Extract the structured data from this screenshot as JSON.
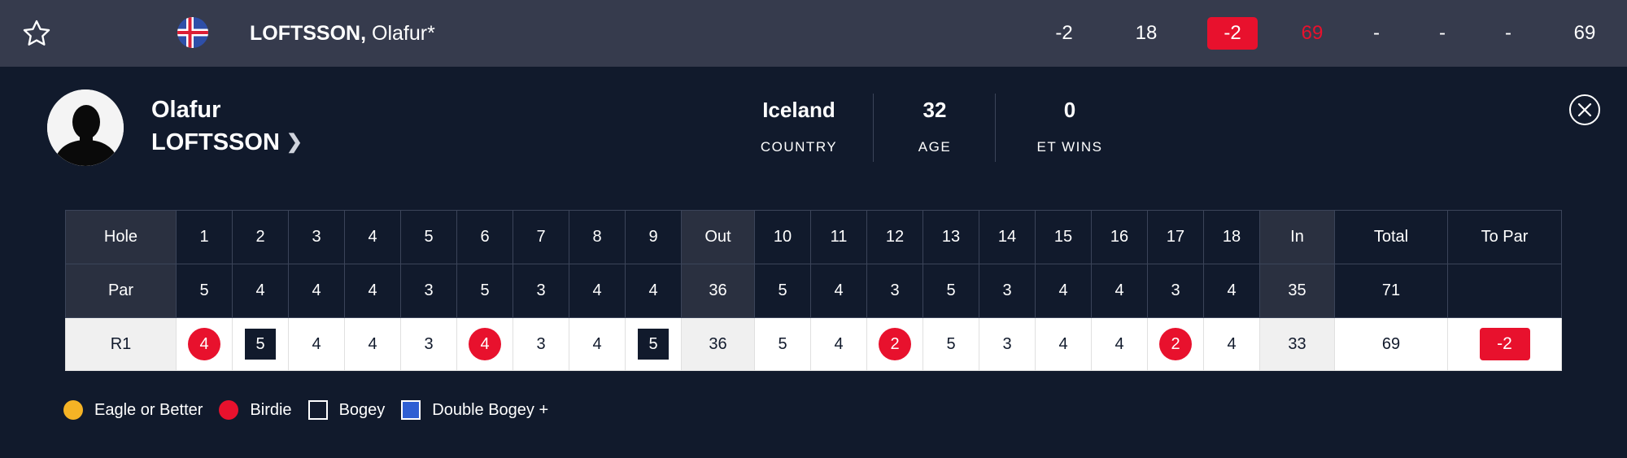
{
  "leaderboard_row": {
    "last_name": "LOFTSSON,",
    "first_name": "Olafur*",
    "flag_icon": "iceland-flag-icon",
    "stats": [
      "-2",
      "18",
      "-2",
      "69",
      "-",
      "-",
      "-",
      "69"
    ]
  },
  "profile": {
    "first_name": "Olafur",
    "last_name": "LOFTSSON",
    "country_value": "Iceland",
    "country_label": "COUNTRY",
    "age_value": "32",
    "age_label": "AGE",
    "wins_value": "0",
    "wins_label": "ET WINS"
  },
  "scorecard": {
    "header": [
      "Hole",
      "1",
      "2",
      "3",
      "4",
      "5",
      "6",
      "7",
      "8",
      "9",
      "Out",
      "10",
      "11",
      "12",
      "13",
      "14",
      "15",
      "16",
      "17",
      "18",
      "In",
      "Total",
      "To Par"
    ],
    "par": [
      "Par",
      "5",
      "4",
      "4",
      "4",
      "3",
      "5",
      "3",
      "4",
      "4",
      "36",
      "5",
      "4",
      "3",
      "5",
      "3",
      "4",
      "4",
      "3",
      "4",
      "35",
      "71",
      ""
    ],
    "r1": [
      "R1",
      "4",
      "5",
      "4",
      "4",
      "3",
      "4",
      "3",
      "4",
      "5",
      "36",
      "5",
      "4",
      "2",
      "5",
      "3",
      "4",
      "4",
      "2",
      "4",
      "33",
      "69",
      "-2"
    ]
  },
  "legend": {
    "eagle": "Eagle or Better",
    "birdie": "Birdie",
    "bogey": "Bogey",
    "double_bogey": "Double Bogey +"
  },
  "colors": {
    "background": "#111a2c",
    "top_row": "#363b4d",
    "under_par_red": "#e8112d",
    "eagle_gold": "#f5b325",
    "double_bogey_blue": "#2f5fd3"
  }
}
